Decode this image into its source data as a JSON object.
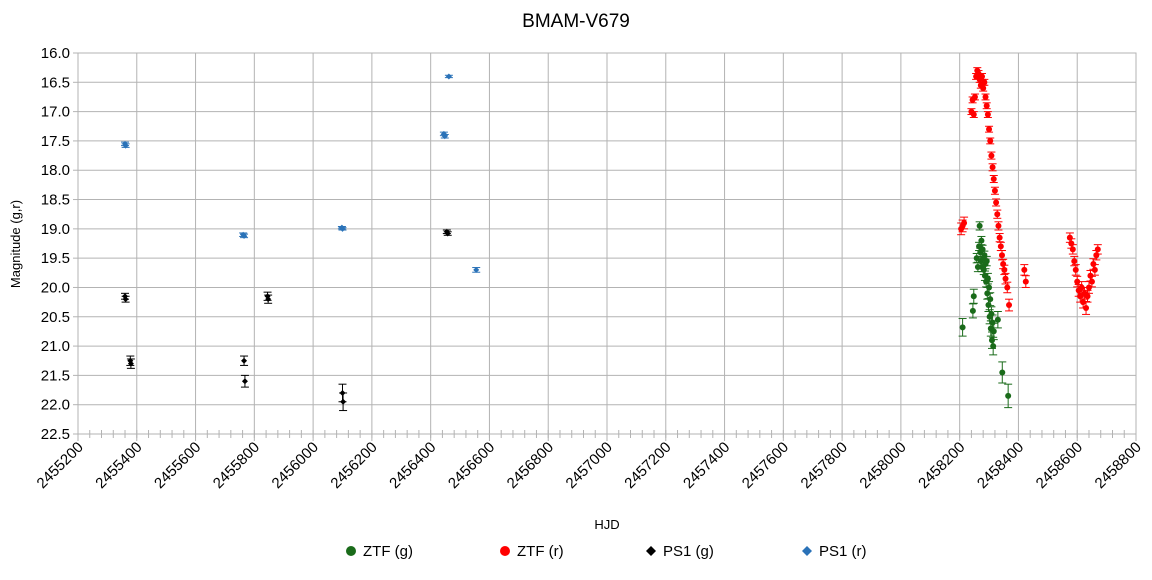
{
  "chart_data": {
    "type": "scatter",
    "title": "BMAM-V679",
    "xlabel": "HJD",
    "ylabel": "Magnitude (g,r)",
    "xlim": [
      2455200,
      2458800
    ],
    "ylim": [
      16.0,
      22.5
    ],
    "y_inverted": true,
    "grid": true,
    "legend_position": "bottom",
    "xticks": [
      2455200,
      2455400,
      2455600,
      2455800,
      2456000,
      2456200,
      2456400,
      2456600,
      2456800,
      2457000,
      2457200,
      2457400,
      2457600,
      2457800,
      2458000,
      2458200,
      2458400,
      2458600,
      2458800
    ],
    "yticks": [
      "16.0",
      "16.5",
      "17.0",
      "17.5",
      "18.0",
      "18.5",
      "19.0",
      "19.5",
      "20.0",
      "20.5",
      "21.0",
      "21.5",
      "22.0",
      "22.5"
    ],
    "series": [
      {
        "name": "ZTF (g)",
        "color": "#1a6b1a",
        "marker": "circle",
        "points": [
          [
            2458210,
            20.68,
            0.15
          ],
          [
            2458245,
            20.4,
            0.12
          ],
          [
            2458248,
            20.15,
            0.12
          ],
          [
            2458258,
            19.5,
            0.08
          ],
          [
            2458262,
            19.65,
            0.08
          ],
          [
            2458266,
            19.3,
            0.07
          ],
          [
            2458268,
            18.95,
            0.07
          ],
          [
            2458270,
            19.4,
            0.07
          ],
          [
            2458272,
            19.55,
            0.07
          ],
          [
            2458274,
            19.2,
            0.07
          ],
          [
            2458276,
            19.65,
            0.08
          ],
          [
            2458278,
            19.35,
            0.07
          ],
          [
            2458280,
            19.5,
            0.07
          ],
          [
            2458282,
            19.7,
            0.08
          ],
          [
            2458284,
            19.45,
            0.07
          ],
          [
            2458286,
            19.8,
            0.08
          ],
          [
            2458288,
            19.6,
            0.08
          ],
          [
            2458290,
            19.9,
            0.09
          ],
          [
            2458292,
            19.55,
            0.08
          ],
          [
            2458294,
            20.1,
            0.1
          ],
          [
            2458296,
            19.85,
            0.09
          ],
          [
            2458298,
            20.3,
            0.11
          ],
          [
            2458300,
            20.0,
            0.1
          ],
          [
            2458302,
            20.5,
            0.12
          ],
          [
            2458304,
            20.2,
            0.11
          ],
          [
            2458306,
            20.7,
            0.13
          ],
          [
            2458308,
            20.45,
            0.12
          ],
          [
            2458310,
            20.9,
            0.14
          ],
          [
            2458312,
            20.6,
            0.13
          ],
          [
            2458314,
            21.0,
            0.15
          ],
          [
            2458316,
            20.75,
            0.14
          ],
          [
            2458330,
            20.55,
            0.14
          ],
          [
            2458345,
            21.45,
            0.18
          ],
          [
            2458365,
            21.85,
            0.2
          ]
        ]
      },
      {
        "name": "ZTF (r)",
        "color": "#ff0000",
        "marker": "circle",
        "points": [
          [
            2458205,
            19.0,
            0.1
          ],
          [
            2458210,
            18.95,
            0.1
          ],
          [
            2458215,
            18.9,
            0.1
          ],
          [
            2458240,
            17.0,
            0.05
          ],
          [
            2458244,
            16.8,
            0.05
          ],
          [
            2458248,
            17.05,
            0.05
          ],
          [
            2458252,
            16.75,
            0.05
          ],
          [
            2458256,
            16.4,
            0.05
          ],
          [
            2458260,
            16.3,
            0.05
          ],
          [
            2458264,
            16.35,
            0.05
          ],
          [
            2458268,
            16.45,
            0.05
          ],
          [
            2458272,
            16.55,
            0.05
          ],
          [
            2458276,
            16.4,
            0.05
          ],
          [
            2458280,
            16.6,
            0.05
          ],
          [
            2458284,
            16.5,
            0.05
          ],
          [
            2458288,
            16.75,
            0.05
          ],
          [
            2458292,
            16.9,
            0.05
          ],
          [
            2458296,
            17.05,
            0.05
          ],
          [
            2458300,
            17.3,
            0.05
          ],
          [
            2458304,
            17.5,
            0.05
          ],
          [
            2458308,
            17.75,
            0.06
          ],
          [
            2458312,
            17.95,
            0.06
          ],
          [
            2458316,
            18.15,
            0.06
          ],
          [
            2458320,
            18.35,
            0.06
          ],
          [
            2458324,
            18.55,
            0.06
          ],
          [
            2458328,
            18.75,
            0.07
          ],
          [
            2458332,
            18.95,
            0.07
          ],
          [
            2458336,
            19.15,
            0.07
          ],
          [
            2458340,
            19.3,
            0.07
          ],
          [
            2458344,
            19.45,
            0.08
          ],
          [
            2458348,
            19.6,
            0.08
          ],
          [
            2458352,
            19.7,
            0.08
          ],
          [
            2458356,
            19.85,
            0.09
          ],
          [
            2458362,
            20.0,
            0.09
          ],
          [
            2458368,
            20.3,
            0.1
          ],
          [
            2458420,
            19.7,
            0.09
          ],
          [
            2458425,
            19.9,
            0.1
          ],
          [
            2458575,
            19.15,
            0.08
          ],
          [
            2458580,
            19.25,
            0.08
          ],
          [
            2458585,
            19.35,
            0.08
          ],
          [
            2458590,
            19.55,
            0.08
          ],
          [
            2458595,
            19.7,
            0.09
          ],
          [
            2458600,
            19.9,
            0.09
          ],
          [
            2458605,
            20.05,
            0.1
          ],
          [
            2458610,
            20.15,
            0.1
          ],
          [
            2458615,
            20.0,
            0.1
          ],
          [
            2458620,
            20.25,
            0.1
          ],
          [
            2458625,
            20.1,
            0.1
          ],
          [
            2458630,
            20.35,
            0.11
          ],
          [
            2458635,
            20.15,
            0.1
          ],
          [
            2458640,
            20.0,
            0.1
          ],
          [
            2458645,
            19.8,
            0.09
          ],
          [
            2458650,
            19.9,
            0.09
          ],
          [
            2458655,
            19.6,
            0.09
          ],
          [
            2458660,
            19.7,
            0.09
          ],
          [
            2458665,
            19.45,
            0.08
          ],
          [
            2458670,
            19.35,
            0.08
          ]
        ]
      },
      {
        "name": "PS1 (g)",
        "color": "#000000",
        "marker": "diamond",
        "points": [
          [
            2455360,
            20.15,
            0.05
          ],
          [
            2455362,
            20.2,
            0.05
          ],
          [
            2455378,
            21.25,
            0.08
          ],
          [
            2455380,
            21.3,
            0.08
          ],
          [
            2455765,
            21.25,
            0.08
          ],
          [
            2455768,
            21.6,
            0.1
          ],
          [
            2455845,
            20.15,
            0.07
          ],
          [
            2455847,
            20.2,
            0.07
          ],
          [
            2456100,
            21.8,
            0.15
          ],
          [
            2456102,
            21.95,
            0.15
          ],
          [
            2456455,
            19.05,
            0.03
          ],
          [
            2456458,
            19.08,
            0.03
          ]
        ]
      },
      {
        "name": "PS1 (r)",
        "color": "#2a72b8",
        "marker": "diamond",
        "points": [
          [
            2455360,
            17.55,
            0.03
          ],
          [
            2455362,
            17.58,
            0.03
          ],
          [
            2455762,
            19.1,
            0.03
          ],
          [
            2455765,
            19.12,
            0.03
          ],
          [
            2456098,
            18.98,
            0.02
          ],
          [
            2456100,
            19.0,
            0.02
          ],
          [
            2456445,
            17.38,
            0.03
          ],
          [
            2456448,
            17.42,
            0.03
          ],
          [
            2456462,
            16.4,
            0.02
          ],
          [
            2456555,
            19.7,
            0.04
          ]
        ]
      }
    ]
  }
}
